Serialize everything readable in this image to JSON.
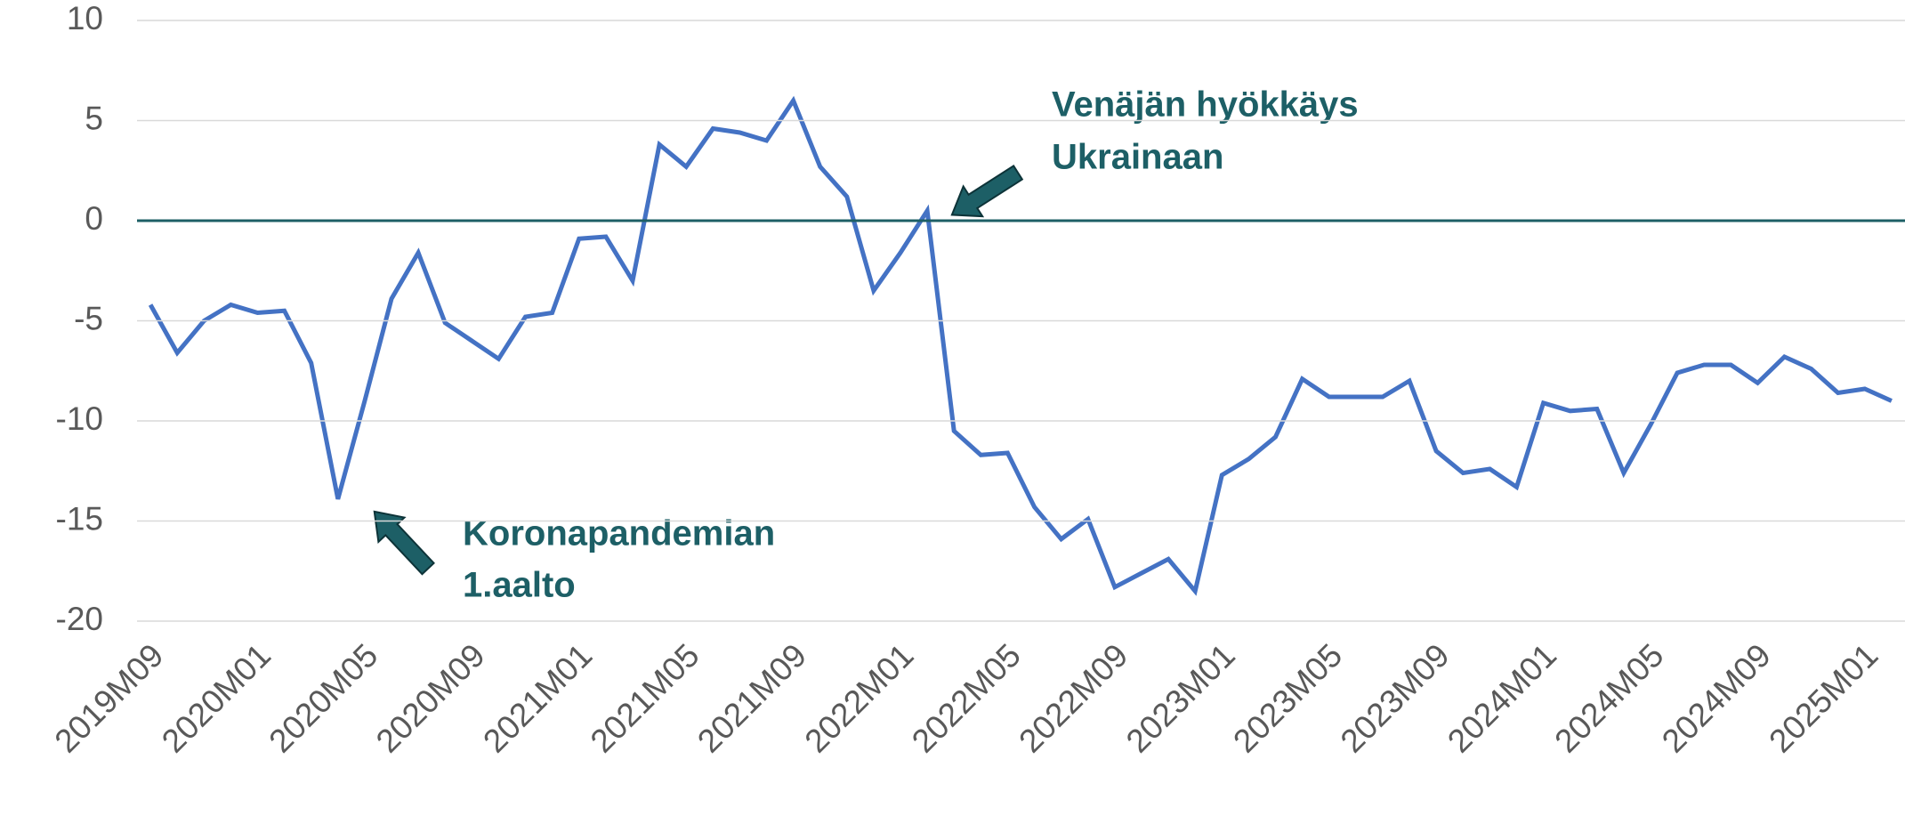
{
  "chart_data": {
    "type": "line",
    "categories": [
      "2019M09",
      null,
      null,
      null,
      "2020M01",
      null,
      null,
      null,
      "2020M05",
      null,
      null,
      null,
      "2020M09",
      null,
      null,
      null,
      "2021M01",
      null,
      null,
      null,
      "2021M05",
      null,
      null,
      null,
      "2021M09",
      null,
      null,
      null,
      "2022M01",
      null,
      null,
      null,
      "2022M05",
      null,
      null,
      null,
      "2022M09",
      null,
      null,
      null,
      "2023M01",
      null,
      null,
      null,
      "2023M05",
      null,
      null,
      null,
      "2023M09",
      null,
      null,
      null,
      "2024M01",
      null,
      null,
      null,
      "2024M05",
      null,
      null,
      null,
      "2024M09",
      null,
      null,
      null,
      "2025M01",
      null
    ],
    "series": [
      {
        "color": "#4472c4",
        "values": [
          -4.2,
          -6.6,
          -5.0,
          -4.2,
          -4.6,
          -4.5,
          -7.1,
          -13.9,
          -9.0,
          -3.9,
          -1.6,
          -5.1,
          -6.0,
          -6.9,
          -4.8,
          -4.6,
          -0.9,
          -0.8,
          -3.0,
          3.8,
          2.7,
          4.6,
          4.4,
          4.0,
          6.0,
          2.7,
          1.2,
          -3.5,
          -1.6,
          0.5,
          -10.5,
          -11.7,
          -11.6,
          -14.3,
          -15.9,
          -14.9,
          -18.3,
          -17.6,
          -16.9,
          -18.5,
          -12.7,
          -11.9,
          -10.8,
          -7.9,
          -8.8,
          -8.8,
          -8.8,
          -8.0,
          -11.5,
          -12.6,
          -12.4,
          -13.3,
          -9.1,
          -9.5,
          -9.4,
          -12.6,
          -10.2,
          -7.6,
          -7.2,
          -7.2,
          -8.1,
          -6.8,
          -7.4,
          -8.6,
          -8.4,
          -9.0
        ]
      }
    ],
    "ylim": [
      -20,
      10
    ],
    "yticks": [
      -20,
      -15,
      -10,
      -5,
      0,
      5,
      10
    ],
    "grid": true,
    "zero_line_color": "#1d5f66",
    "annotations": [
      {
        "lines": [
          "Venäjän hyökkäys",
          "Ukrainaan"
        ]
      },
      {
        "lines": [
          "Koronapandemian",
          "1.aalto"
        ]
      }
    ]
  }
}
